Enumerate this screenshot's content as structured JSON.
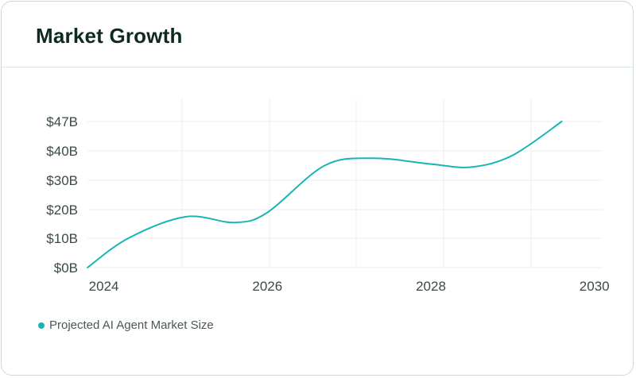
{
  "card": {
    "title": "Market Growth"
  },
  "colors": {
    "series": "#19b5b5",
    "grid": "#ececec",
    "title": "#0f2a22"
  },
  "chart_data": {
    "type": "line",
    "title": "Market Growth",
    "xlabel": "",
    "ylabel": "",
    "x_ticks": [
      "2024",
      "2026",
      "2028",
      "2030"
    ],
    "y_ticks": [
      "$0B",
      "$10B",
      "$20B",
      "$30B",
      "$40B",
      "$47B"
    ],
    "y_tick_values": [
      0,
      10,
      20,
      30,
      40,
      47
    ],
    "xlim": [
      2023.8,
      2030.1
    ],
    "ylim": [
      0,
      52
    ],
    "grid": true,
    "legend_position": "bottom-left",
    "smooth": true,
    "series": [
      {
        "name": "Projected AI Agent Market Size",
        "x": [
          2023.8,
          2024.3,
          2025.0,
          2025.6,
          2026.0,
          2026.7,
          2027.3,
          2028.0,
          2028.5,
          2029.0,
          2029.6
        ],
        "y": [
          0,
          10,
          17.5,
          15.5,
          19,
          35,
          37.5,
          35.5,
          34.5,
          38.5,
          47
        ]
      }
    ]
  }
}
